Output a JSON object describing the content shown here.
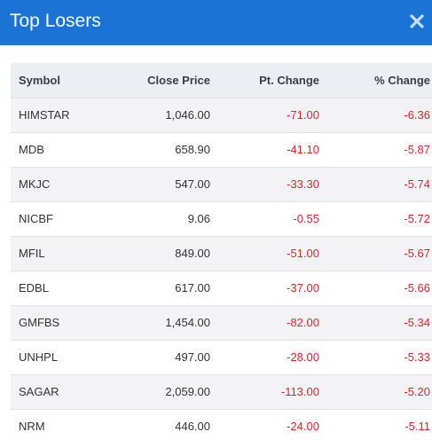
{
  "modal": {
    "title": "Top Losers",
    "close_icon": "close-x-icon"
  },
  "colors": {
    "header_bg": "#1a73d5",
    "negative": "#e0242b"
  },
  "table": {
    "columns": [
      "Symbol",
      "Close Price",
      "Pt. Change",
      "% Change"
    ],
    "rows": [
      {
        "symbol": "HIMSTAR",
        "close": "1,046.00",
        "pt": "-71.00",
        "pct": "-6.36"
      },
      {
        "symbol": "MDB",
        "close": "658.90",
        "pt": "-41.10",
        "pct": "-5.87"
      },
      {
        "symbol": "MKJC",
        "close": "547.00",
        "pt": "-33.30",
        "pct": "-5.74"
      },
      {
        "symbol": "NICBF",
        "close": "9.06",
        "pt": "-0.55",
        "pct": "-5.72"
      },
      {
        "symbol": "MFIL",
        "close": "849.00",
        "pt": "-51.00",
        "pct": "-5.67"
      },
      {
        "symbol": "EDBL",
        "close": "617.00",
        "pt": "-37.00",
        "pct": "-5.66"
      },
      {
        "symbol": "GMFBS",
        "close": "1,454.00",
        "pt": "-82.00",
        "pct": "-5.34"
      },
      {
        "symbol": "UNHPL",
        "close": "497.00",
        "pt": "-28.00",
        "pct": "-5.33"
      },
      {
        "symbol": "SAGAR",
        "close": "2,059.00",
        "pt": "-113.00",
        "pct": "-5.20"
      },
      {
        "symbol": "NRM",
        "close": "446.00",
        "pt": "-24.00",
        "pct": "-5.11"
      }
    ]
  }
}
